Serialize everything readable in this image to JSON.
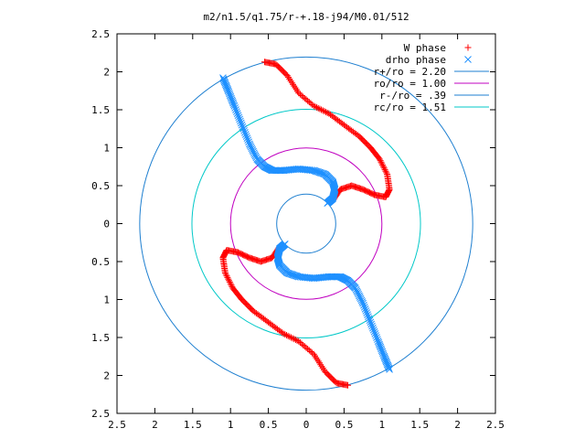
{
  "chart_data": {
    "type": "scatter",
    "title": "m2/n1.5/q1.75/r-+.18-j94/M0.01/512",
    "xlabel": "",
    "ylabel": "",
    "xlim": [
      -2.5,
      2.5
    ],
    "ylim": [
      -2.5,
      2.5
    ],
    "x_ticks": [
      -2.5,
      -2,
      -1.5,
      -1,
      -0.5,
      0,
      0.5,
      1,
      1.5,
      2,
      2.5
    ],
    "y_ticks": [
      -2.5,
      -2,
      -1.5,
      -1,
      -0.5,
      0,
      0.5,
      1,
      1.5,
      2,
      2.5
    ],
    "x_tick_labels": [
      "2.5",
      "2",
      "1.5",
      "1",
      "0.5",
      "0",
      "0.5",
      "1",
      "1.5",
      "2",
      "2.5"
    ],
    "y_tick_labels": [
      "2.5",
      "2",
      "1.5",
      "1",
      "0.5",
      "0",
      "0.5",
      "1",
      "1.5",
      "2",
      "2.5"
    ],
    "grid": false,
    "legend_position": "top-right",
    "series": [
      {
        "name": "W phase",
        "marker": "plus",
        "color": "#ff0000",
        "arms": [
          [
            [
              -0.55,
              2.13
            ],
            [
              -0.4,
              2.1
            ],
            [
              -0.25,
              1.95
            ],
            [
              -0.1,
              1.72
            ],
            [
              0.1,
              1.55
            ],
            [
              0.3,
              1.45
            ],
            [
              0.5,
              1.3
            ],
            [
              0.7,
              1.15
            ],
            [
              0.85,
              1.0
            ],
            [
              0.97,
              0.85
            ],
            [
              1.07,
              0.65
            ],
            [
              1.1,
              0.45
            ],
            [
              1.05,
              0.35
            ],
            [
              0.9,
              0.38
            ],
            [
              0.75,
              0.45
            ],
            [
              0.6,
              0.5
            ],
            [
              0.45,
              0.45
            ],
            [
              0.35,
              0.3
            ]
          ],
          [
            [
              0.55,
              -2.13
            ],
            [
              0.4,
              -2.1
            ],
            [
              0.25,
              -1.95
            ],
            [
              0.1,
              -1.72
            ],
            [
              -0.1,
              -1.55
            ],
            [
              -0.3,
              -1.45
            ],
            [
              -0.5,
              -1.3
            ],
            [
              -0.7,
              -1.15
            ],
            [
              -0.85,
              -1.0
            ],
            [
              -0.97,
              -0.85
            ],
            [
              -1.07,
              -0.65
            ],
            [
              -1.1,
              -0.45
            ],
            [
              -1.05,
              -0.35
            ],
            [
              -0.9,
              -0.38
            ],
            [
              -0.75,
              -0.45
            ],
            [
              -0.6,
              -0.5
            ],
            [
              -0.45,
              -0.45
            ],
            [
              -0.35,
              -0.3
            ]
          ]
        ]
      },
      {
        "name": "drho phase",
        "marker": "cross",
        "color": "#1e90ff",
        "arms": [
          [
            [
              -1.1,
              1.92
            ],
            [
              -1.03,
              1.75
            ],
            [
              -0.95,
              1.55
            ],
            [
              -0.85,
              1.3
            ],
            [
              -0.75,
              1.05
            ],
            [
              -0.65,
              0.85
            ],
            [
              -0.55,
              0.75
            ],
            [
              -0.45,
              0.7
            ],
            [
              -0.3,
              0.7
            ],
            [
              -0.1,
              0.72
            ],
            [
              0.1,
              0.7
            ],
            [
              0.25,
              0.65
            ],
            [
              0.35,
              0.55
            ],
            [
              0.38,
              0.45
            ],
            [
              0.35,
              0.33
            ],
            [
              0.28,
              0.27
            ]
          ],
          [
            [
              1.1,
              -1.92
            ],
            [
              1.03,
              -1.75
            ],
            [
              0.95,
              -1.55
            ],
            [
              0.85,
              -1.3
            ],
            [
              0.75,
              -1.05
            ],
            [
              0.65,
              -0.85
            ],
            [
              0.55,
              -0.75
            ],
            [
              0.45,
              -0.7
            ],
            [
              0.3,
              -0.7
            ],
            [
              0.1,
              -0.72
            ],
            [
              -0.1,
              -0.7
            ],
            [
              -0.25,
              -0.65
            ],
            [
              -0.35,
              -0.55
            ],
            [
              -0.38,
              -0.45
            ],
            [
              -0.35,
              -0.33
            ],
            [
              -0.28,
              -0.27
            ]
          ]
        ]
      },
      {
        "name": "r+/ro = 2.20",
        "type": "circle",
        "radius": 2.2,
        "color": "#1e7fd0"
      },
      {
        "name": "ro/ro = 1.00",
        "type": "circle",
        "radius": 1.0,
        "color": "#c000c0"
      },
      {
        "name": "r-/ro = .39",
        "type": "circle",
        "radius": 0.39,
        "color": "#1e7fd0"
      },
      {
        "name": "rc/ro = 1.51",
        "type": "circle",
        "radius": 1.51,
        "color": "#00c8c8"
      }
    ]
  }
}
